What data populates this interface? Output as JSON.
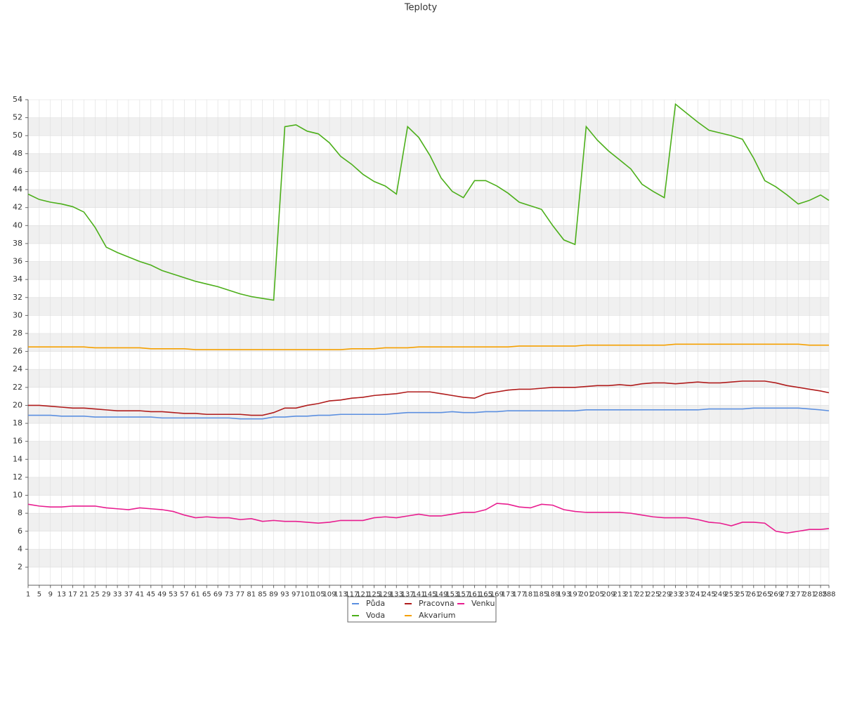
{
  "chart_data": {
    "type": "line",
    "title": "Teploty",
    "x": [
      1,
      5,
      9,
      13,
      17,
      21,
      25,
      29,
      33,
      37,
      41,
      45,
      49,
      53,
      57,
      61,
      65,
      69,
      73,
      77,
      81,
      85,
      89,
      93,
      97,
      101,
      105,
      109,
      113,
      117,
      121,
      125,
      129,
      133,
      137,
      141,
      145,
      149,
      153,
      157,
      161,
      165,
      169,
      173,
      177,
      181,
      185,
      189,
      193,
      197,
      201,
      205,
      209,
      213,
      217,
      221,
      225,
      229,
      233,
      237,
      241,
      245,
      249,
      253,
      257,
      261,
      265,
      269,
      273,
      277,
      281,
      285,
      288
    ],
    "xlim": [
      1,
      288
    ],
    "ylim": [
      0,
      54
    ],
    "yticks": [
      2,
      4,
      6,
      8,
      10,
      12,
      14,
      16,
      18,
      20,
      22,
      24,
      26,
      28,
      30,
      32,
      34,
      36,
      38,
      40,
      42,
      44,
      46,
      48,
      50,
      52,
      54
    ],
    "grid": true,
    "legend": "bottom",
    "series": [
      {
        "name": "Půda",
        "color": "#5b8fe0",
        "values": [
          18.9,
          18.9,
          18.9,
          18.8,
          18.8,
          18.8,
          18.7,
          18.7,
          18.7,
          18.7,
          18.7,
          18.7,
          18.6,
          18.6,
          18.6,
          18.6,
          18.6,
          18.6,
          18.6,
          18.5,
          18.5,
          18.5,
          18.7,
          18.7,
          18.8,
          18.8,
          18.9,
          18.9,
          19.0,
          19.0,
          19.0,
          19.0,
          19.0,
          19.1,
          19.2,
          19.2,
          19.2,
          19.2,
          19.3,
          19.2,
          19.2,
          19.3,
          19.3,
          19.4,
          19.4,
          19.4,
          19.4,
          19.4,
          19.4,
          19.4,
          19.5,
          19.5,
          19.5,
          19.5,
          19.5,
          19.5,
          19.5,
          19.5,
          19.5,
          19.5,
          19.5,
          19.6,
          19.6,
          19.6,
          19.6,
          19.7,
          19.7,
          19.7,
          19.7,
          19.7,
          19.6,
          19.5,
          19.4
        ]
      },
      {
        "name": "Voda",
        "color": "#4caf1a",
        "values": [
          43.5,
          42.9,
          42.6,
          42.4,
          42.1,
          41.5,
          39.8,
          37.6,
          37.0,
          36.5,
          36.0,
          35.6,
          35.0,
          34.6,
          34.2,
          33.8,
          33.5,
          33.2,
          32.8,
          32.4,
          32.1,
          31.9,
          31.7,
          51.0,
          51.2,
          50.5,
          50.2,
          49.2,
          47.7,
          46.8,
          45.7,
          44.9,
          44.4,
          43.5,
          51.0,
          49.8,
          47.8,
          45.3,
          43.8,
          43.1,
          45.0,
          45.0,
          44.4,
          43.6,
          42.6,
          42.2,
          41.8,
          40.0,
          38.4,
          37.9,
          51.0,
          49.5,
          48.3,
          47.3,
          46.3,
          44.6,
          43.8,
          43.1,
          53.5,
          52.5,
          51.5,
          50.6,
          50.3,
          50.0,
          49.6,
          47.5,
          45.0,
          44.3,
          43.4,
          42.4,
          42.8,
          43.4,
          42.8
        ]
      },
      {
        "name": "Pracovna",
        "color": "#b01c1c",
        "values": [
          20.0,
          20.0,
          19.9,
          19.8,
          19.7,
          19.7,
          19.6,
          19.5,
          19.4,
          19.4,
          19.4,
          19.3,
          19.3,
          19.2,
          19.1,
          19.1,
          19.0,
          19.0,
          19.0,
          19.0,
          18.9,
          18.9,
          19.2,
          19.7,
          19.7,
          20.0,
          20.2,
          20.5,
          20.6,
          20.8,
          20.9,
          21.1,
          21.2,
          21.3,
          21.5,
          21.5,
          21.5,
          21.3,
          21.1,
          20.9,
          20.8,
          21.3,
          21.5,
          21.7,
          21.8,
          21.8,
          21.9,
          22.0,
          22.0,
          22.0,
          22.1,
          22.2,
          22.2,
          22.3,
          22.2,
          22.4,
          22.5,
          22.5,
          22.4,
          22.5,
          22.6,
          22.5,
          22.5,
          22.6,
          22.7,
          22.7,
          22.7,
          22.5,
          22.2,
          22.0,
          21.8,
          21.6,
          21.4
        ]
      },
      {
        "name": "Akvarium",
        "color": "#f5a000",
        "values": [
          26.5,
          26.5,
          26.5,
          26.5,
          26.5,
          26.5,
          26.4,
          26.4,
          26.4,
          26.4,
          26.4,
          26.3,
          26.3,
          26.3,
          26.3,
          26.2,
          26.2,
          26.2,
          26.2,
          26.2,
          26.2,
          26.2,
          26.2,
          26.2,
          26.2,
          26.2,
          26.2,
          26.2,
          26.2,
          26.3,
          26.3,
          26.3,
          26.4,
          26.4,
          26.4,
          26.5,
          26.5,
          26.5,
          26.5,
          26.5,
          26.5,
          26.5,
          26.5,
          26.5,
          26.6,
          26.6,
          26.6,
          26.6,
          26.6,
          26.6,
          26.7,
          26.7,
          26.7,
          26.7,
          26.7,
          26.7,
          26.7,
          26.7,
          26.8,
          26.8,
          26.8,
          26.8,
          26.8,
          26.8,
          26.8,
          26.8,
          26.8,
          26.8,
          26.8,
          26.8,
          26.7,
          26.7,
          26.7
        ]
      },
      {
        "name": "Venku",
        "color": "#e81d8f",
        "values": [
          9.0,
          8.8,
          8.7,
          8.7,
          8.8,
          8.8,
          8.8,
          8.6,
          8.5,
          8.4,
          8.6,
          8.5,
          8.4,
          8.2,
          7.8,
          7.5,
          7.6,
          7.5,
          7.5,
          7.3,
          7.4,
          7.1,
          7.2,
          7.1,
          7.1,
          7.0,
          6.9,
          7.0,
          7.2,
          7.2,
          7.2,
          7.5,
          7.6,
          7.5,
          7.7,
          7.9,
          7.7,
          7.7,
          7.9,
          8.1,
          8.1,
          8.4,
          9.1,
          9.0,
          8.7,
          8.6,
          9.0,
          8.9,
          8.4,
          8.2,
          8.1,
          8.1,
          8.1,
          8.1,
          8.0,
          7.8,
          7.6,
          7.5,
          7.5,
          7.5,
          7.3,
          7.0,
          6.9,
          6.6,
          7.0,
          7.0,
          6.9,
          6.0,
          5.8,
          6.0,
          6.2,
          6.2,
          6.3
        ]
      }
    ]
  }
}
